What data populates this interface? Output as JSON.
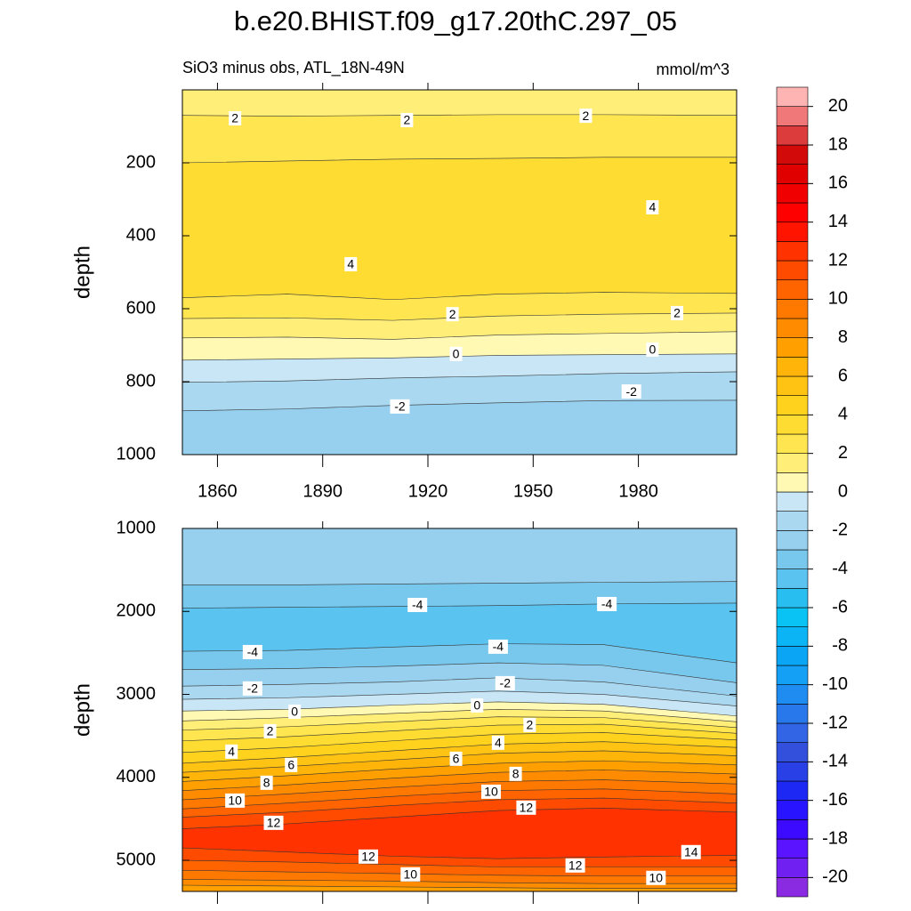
{
  "chart_data": {
    "type": "contour",
    "title": "b.e20.BHIST.f09_g17.20thC.297_05",
    "subtitle": "SiO3 minus obs, ATL_18N-49N",
    "units": "mmol/m^3",
    "colorbar": {
      "levels": [
        -20,
        -19,
        -18,
        -17,
        -16,
        -15,
        -14,
        -13,
        -12,
        -11,
        -10,
        -9,
        -8,
        -7,
        -6,
        -5,
        -4,
        -3,
        -2,
        -1,
        0,
        1,
        2,
        3,
        4,
        5,
        6,
        7,
        8,
        9,
        10,
        11,
        12,
        13,
        14,
        15,
        16,
        17,
        18,
        19,
        20
      ],
      "ticks": [
        -20,
        -18,
        -16,
        -14,
        -12,
        -10,
        -8,
        -6,
        -4,
        -2,
        0,
        2,
        4,
        6,
        8,
        10,
        12,
        14,
        16,
        18,
        20
      ],
      "colors": [
        "#8a2be2",
        "#7020f0",
        "#5a14ff",
        "#3c0aff",
        "#2814ff",
        "#1e28f5",
        "#2840e6",
        "#3250dc",
        "#3264e6",
        "#2878eb",
        "#1e8cf0",
        "#14a0f5",
        "#0aa5f5",
        "#0ab4f5",
        "#0ac3f5",
        "#28bef0",
        "#5ac3f0",
        "#78c8ee",
        "#96d0ee",
        "#aad8f0",
        "#c8e6f5",
        "#fff9b4",
        "#ffee78",
        "#ffe650",
        "#ffdc32",
        "#ffd21e",
        "#ffc314",
        "#ffb40a",
        "#ffa000",
        "#ff8c00",
        "#ff7800",
        "#ff6400",
        "#ff4b00",
        "#ff3200",
        "#ff1400",
        "#ff0000",
        "#f00000",
        "#e10000",
        "#d20a0a",
        "#dc3c3c",
        "#f07878",
        "#ffb4b4"
      ]
    },
    "panels": [
      {
        "ylabel": "depth",
        "xlim": [
          1850,
          2008
        ],
        "ylim": [
          0,
          1000
        ],
        "yticks": [
          200,
          400,
          600,
          800,
          1000
        ],
        "xticks": [
          1860,
          1890,
          1920,
          1950,
          1980
        ],
        "x": [
          1850,
          1880,
          1910,
          1940,
          1970,
          2008
        ],
        "layers": [
          {
            "range": [
              1,
              2
            ],
            "base": [
              70,
              72,
              70,
              68,
              68,
              70
            ]
          },
          {
            "range": [
              2,
              3
            ],
            "base": [
              200,
              195,
              190,
              188,
              185,
              185
            ]
          },
          {
            "range": [
              3,
              4
            ],
            "base": [
              570,
              560,
              575,
              560,
              555,
              558
            ]
          },
          {
            "range": [
              2,
              3
            ],
            "base": [
              627,
              625,
              632,
              620,
              615,
              612
            ]
          },
          {
            "range": [
              1,
              2
            ],
            "base": [
              680,
              678,
              684,
              672,
              668,
              663
            ]
          },
          {
            "range": [
              0,
              1
            ],
            "base": [
              741,
              738,
              735,
              728,
              726,
              724
            ]
          },
          {
            "range": [
              -1,
              0
            ],
            "base": [
              802,
              798,
              790,
              785,
              778,
              773
            ]
          },
          {
            "range": [
              -2,
              -1
            ],
            "base": [
              880,
              875,
              865,
              858,
              852,
              851
            ]
          },
          {
            "range": [
              -3,
              -2
            ]
          }
        ],
        "labels": [
          {
            "x": 1865,
            "y": 78,
            "value": 2
          },
          {
            "x": 1914,
            "y": 83,
            "value": 2
          },
          {
            "x": 1965,
            "y": 71,
            "value": 2
          },
          {
            "x": 1984,
            "y": 322,
            "value": 4
          },
          {
            "x": 1898,
            "y": 478,
            "value": 4
          },
          {
            "x": 1927,
            "y": 615,
            "value": 2
          },
          {
            "x": 1991,
            "y": 612,
            "value": 2
          },
          {
            "x": 1928,
            "y": 724,
            "value": 0
          },
          {
            "x": 1984,
            "y": 712,
            "value": 0
          },
          {
            "x": 1912,
            "y": 868,
            "value": -2
          },
          {
            "x": 1978,
            "y": 827,
            "value": -2
          }
        ]
      },
      {
        "ylabel": "depth",
        "xlim": [
          1850,
          2008
        ],
        "ylim": [
          1000,
          5375
        ],
        "yticks": [
          1000,
          2000,
          3000,
          4000,
          5000
        ],
        "x": [
          1850,
          1880,
          1910,
          1940,
          1970,
          2008
        ],
        "layers": [
          {
            "range": [
              -3,
              -2
            ],
            "base": [
              1680,
              1680,
              1670,
              1660,
              1650,
              1640
            ]
          },
          {
            "range": [
              -4,
              -3
            ],
            "base": [
              1960,
              1950,
              1940,
              1930,
              1910,
              1900
            ]
          },
          {
            "range": [
              -5,
              -4
            ],
            "base": [
              2480,
              2470,
              2430,
              2390,
              2400,
              2620
            ]
          },
          {
            "range": [
              -4,
              -3
            ],
            "base": [
              2700,
              2690,
              2660,
              2620,
              2650,
              2860
            ]
          },
          {
            "range": [
              -3,
              -2
            ],
            "base": [
              2900,
              2880,
              2850,
              2800,
              2850,
              3020
            ]
          },
          {
            "range": [
              -2,
              -1
            ],
            "base": [
              3060,
              3040,
              3000,
              2960,
              3000,
              3140
            ]
          },
          {
            "range": [
              -1,
              0
            ],
            "base": [
              3200,
              3180,
              3130,
              3090,
              3120,
              3260
            ]
          },
          {
            "range": [
              0,
              1
            ],
            "base": [
              3320,
              3280,
              3230,
              3180,
              3200,
              3330
            ]
          },
          {
            "range": [
              1,
              2
            ],
            "base": [
              3430,
              3390,
              3330,
              3270,
              3280,
              3400
            ]
          },
          {
            "range": [
              2,
              3
            ],
            "base": [
              3560,
              3510,
              3440,
              3370,
              3360,
              3470
            ]
          },
          {
            "range": [
              3,
              4
            ],
            "base": [
              3700,
              3640,
              3560,
              3480,
              3460,
              3550
            ]
          },
          {
            "range": [
              4,
              5
            ],
            "base": [
              3830,
              3760,
              3680,
              3600,
              3570,
              3640
            ]
          },
          {
            "range": [
              5,
              6
            ],
            "base": [
              3940,
              3870,
              3790,
              3710,
              3680,
              3740
            ]
          },
          {
            "range": [
              6,
              7
            ],
            "base": [
              4050,
              3980,
              3900,
              3830,
              3800,
              3850
            ]
          },
          {
            "range": [
              7,
              8
            ],
            "base": [
              4160,
              4090,
              4010,
              3940,
              3910,
              3960
            ]
          },
          {
            "range": [
              8,
              9
            ],
            "base": [
              4270,
              4200,
              4120,
              4050,
              4030,
              4080
            ]
          },
          {
            "range": [
              9,
              10
            ],
            "base": [
              4380,
              4310,
              4230,
              4160,
              4140,
              4200
            ]
          },
          {
            "range": [
              10,
              11
            ],
            "base": [
              4480,
              4420,
              4340,
              4270,
              4250,
              4310
            ]
          },
          {
            "range": [
              11,
              12
            ],
            "base": [
              4620,
              4560,
              4480,
              4400,
              4370,
              4420
            ]
          },
          {
            "range": [
              12,
              13
            ],
            "base": [
              4850,
              4900,
              4950,
              4980,
              4960,
              4940
            ]
          },
          {
            "range": [
              11,
              12
            ],
            "base": [
              5000,
              5020,
              5050,
              5080,
              5080,
              5080
            ]
          },
          {
            "range": [
              10,
              11
            ],
            "base": [
              5120,
              5140,
              5160,
              5180,
              5190,
              5190
            ]
          },
          {
            "range": [
              9,
              10
            ],
            "base": [
              5230,
              5240,
              5250,
              5270,
              5280,
              5280
            ]
          },
          {
            "range": [
              8,
              9
            ],
            "base": [
              5300,
              5310,
              5320,
              5330,
              5340,
              5340
            ]
          },
          {
            "range": [
              7,
              8
            ]
          }
        ],
        "labels": [
          {
            "x": 1917,
            "y": 1922,
            "value": -4
          },
          {
            "x": 1971,
            "y": 1911,
            "value": -4
          },
          {
            "x": 1870,
            "y": 2490,
            "value": -4
          },
          {
            "x": 1940,
            "y": 2425,
            "value": -4
          },
          {
            "x": 1870,
            "y": 2929,
            "value": -2
          },
          {
            "x": 1942,
            "y": 2865,
            "value": -2
          },
          {
            "x": 1882,
            "y": 3208,
            "value": 0
          },
          {
            "x": 1934,
            "y": 3133,
            "value": 0
          },
          {
            "x": 1875,
            "y": 3444,
            "value": 2
          },
          {
            "x": 1949,
            "y": 3369,
            "value": 2
          },
          {
            "x": 1864,
            "y": 3690,
            "value": 4
          },
          {
            "x": 1940,
            "y": 3583,
            "value": 4
          },
          {
            "x": 1881,
            "y": 3851,
            "value": 6
          },
          {
            "x": 1928,
            "y": 3776,
            "value": 6
          },
          {
            "x": 1874,
            "y": 4065,
            "value": 8
          },
          {
            "x": 1945,
            "y": 3958,
            "value": 8
          },
          {
            "x": 1865,
            "y": 4280,
            "value": 10
          },
          {
            "x": 1938,
            "y": 4173,
            "value": 10
          },
          {
            "x": 1876,
            "y": 4548,
            "value": 12
          },
          {
            "x": 1948,
            "y": 4365,
            "value": 12
          },
          {
            "x": 1995,
            "y": 4901,
            "value": 14
          },
          {
            "x": 1903,
            "y": 4955,
            "value": 12
          },
          {
            "x": 1962,
            "y": 5062,
            "value": 12
          },
          {
            "x": 1915,
            "y": 5169,
            "value": 10
          },
          {
            "x": 1985,
            "y": 5212,
            "value": 10
          }
        ]
      }
    ]
  }
}
